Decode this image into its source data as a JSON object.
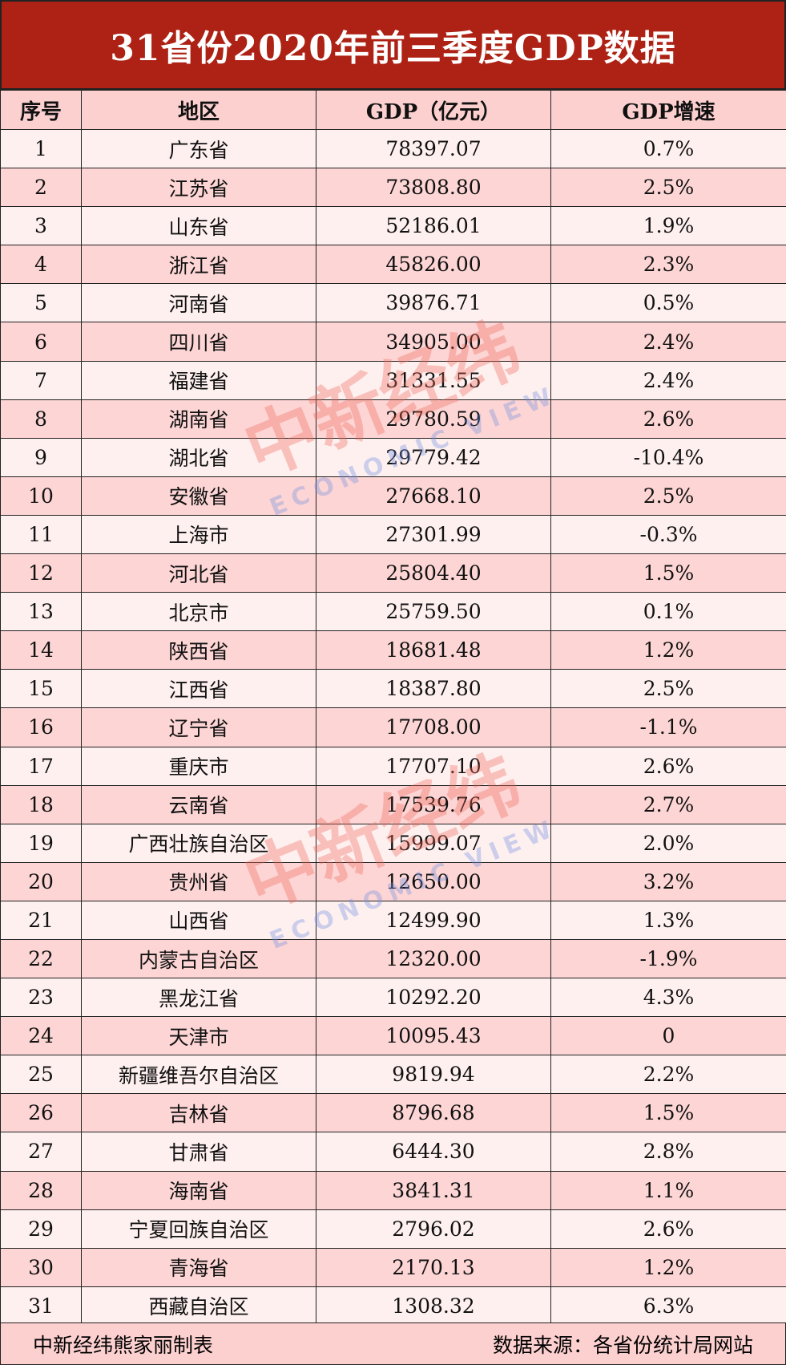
{
  "title": "31省份2020年前三季度GDP数据",
  "headers": [
    "序号",
    "地区",
    "GDP（亿元）",
    "GDP增速"
  ],
  "rows": [
    [
      "1",
      "广东省",
      "78397.07",
      "0.7%"
    ],
    [
      "2",
      "江苏省",
      "73808.80",
      "2.5%"
    ],
    [
      "3",
      "山东省",
      "52186.01",
      "1.9%"
    ],
    [
      "4",
      "浙江省",
      "45826.00",
      "2.3%"
    ],
    [
      "5",
      "河南省",
      "39876.71",
      "0.5%"
    ],
    [
      "6",
      "四川省",
      "34905.00",
      "2.4%"
    ],
    [
      "7",
      "福建省",
      "31331.55",
      "2.4%"
    ],
    [
      "8",
      "湖南省",
      "29780.59",
      "2.6%"
    ],
    [
      "9",
      "湖北省",
      "29779.42",
      "-10.4%"
    ],
    [
      "10",
      "安徽省",
      "27668.10",
      "2.5%"
    ],
    [
      "11",
      "上海市",
      "27301.99",
      "-0.3%"
    ],
    [
      "12",
      "河北省",
      "25804.40",
      "1.5%"
    ],
    [
      "13",
      "北京市",
      "25759.50",
      "0.1%"
    ],
    [
      "14",
      "陕西省",
      "18681.48",
      "1.2%"
    ],
    [
      "15",
      "江西省",
      "18387.80",
      "2.5%"
    ],
    [
      "16",
      "辽宁省",
      "17708.00",
      "-1.1%"
    ],
    [
      "17",
      "重庆市",
      "17707.10",
      "2.6%"
    ],
    [
      "18",
      "云南省",
      "17539.76",
      "2.7%"
    ],
    [
      "19",
      "广西壮族自治区",
      "15999.07",
      "2.0%"
    ],
    [
      "20",
      "贵州省",
      "12650.00",
      "3.2%"
    ],
    [
      "21",
      "山西省",
      "12499.90",
      "1.3%"
    ],
    [
      "22",
      "内蒙古自治区",
      "12320.00",
      "-1.9%"
    ],
    [
      "23",
      "黑龙江省",
      "10292.20",
      "4.3%"
    ],
    [
      "24",
      "天津市",
      "10095.43",
      "0"
    ],
    [
      "25",
      "新疆维吾尔自治区",
      "9819.94",
      "2.2%"
    ],
    [
      "26",
      "吉林省",
      "8796.68",
      "1.5%"
    ],
    [
      "27",
      "甘肃省",
      "6444.30",
      "2.8%"
    ],
    [
      "28",
      "海南省",
      "3841.31",
      "1.1%"
    ],
    [
      "29",
      "宁夏回族自治区",
      "2796.02",
      "2.6%"
    ],
    [
      "30",
      "青海省",
      "2170.13",
      "1.2%"
    ],
    [
      "31",
      "西藏自治区",
      "1308.32",
      "6.3%"
    ]
  ],
  "footer": {
    "left": "中新经纬熊家丽制表",
    "right": "数据来源：各省份统计局网站"
  },
  "watermark": {
    "cn": "中新经纬",
    "en": "ECONOMIC VIEW"
  },
  "colors": {
    "title_bg": "#ad2214",
    "header_bg": "#fdd0d0",
    "row_odd": "#fff0f0",
    "row_even": "#fdd5d5"
  }
}
